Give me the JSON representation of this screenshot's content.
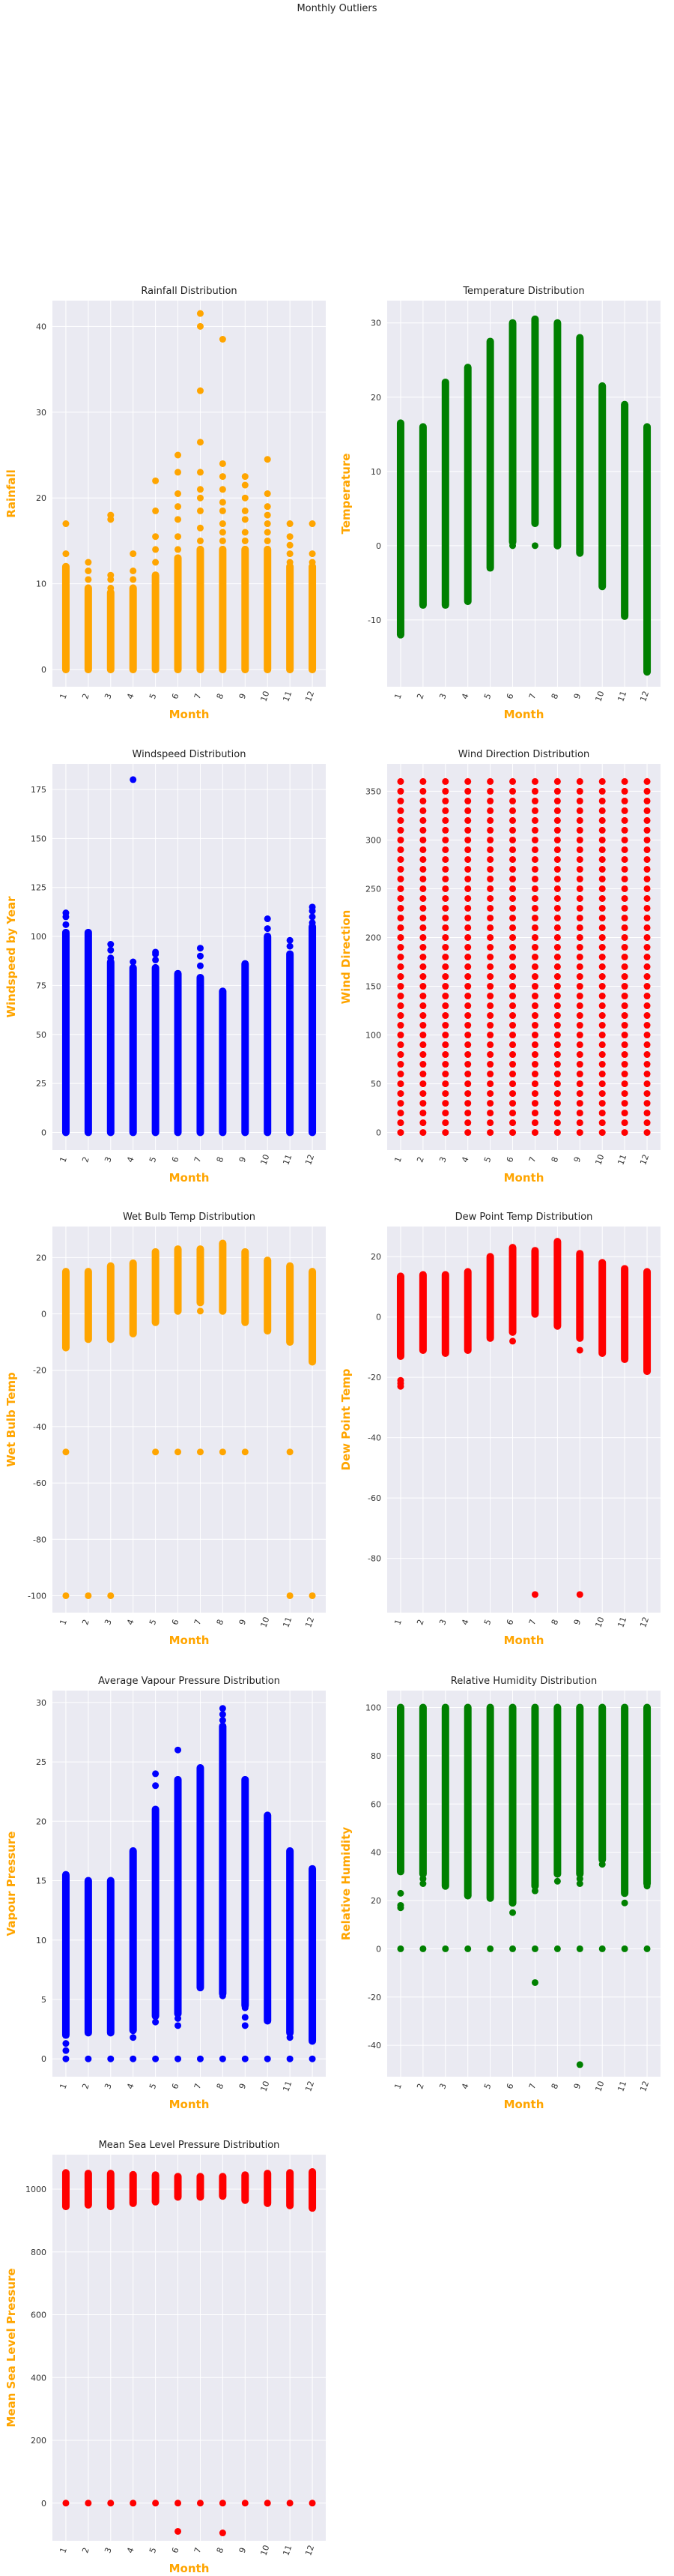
{
  "suptitle": "Monthly Outliers",
  "colors": {
    "accent_label": "#ffa500",
    "plot_bg": "#eaeaf2",
    "grid": "#ffffff"
  },
  "chart_data": [
    {
      "type": "scatter",
      "title": "Rainfall Distribution",
      "xlabel": "Month",
      "ylabel": "Rainfall",
      "color": "#ffa500",
      "x_ticks": [
        "1",
        "2",
        "3",
        "4",
        "5",
        "6",
        "7",
        "8",
        "9",
        "10",
        "11",
        "12"
      ],
      "y_ticks": [
        0,
        10,
        20,
        30,
        40
      ],
      "ylim": [
        -2,
        43
      ],
      "ranges": [
        [
          0,
          12
        ],
        [
          0,
          9.5
        ],
        [
          0,
          9
        ],
        [
          0,
          9.5
        ],
        [
          0,
          11
        ],
        [
          0,
          13
        ],
        [
          0,
          14
        ],
        [
          0,
          14
        ],
        [
          0,
          14
        ],
        [
          0,
          14
        ],
        [
          0,
          12
        ],
        [
          0,
          12
        ]
      ],
      "outliers": [
        [
          1,
          13.5
        ],
        [
          1,
          17
        ],
        [
          2,
          10.5
        ],
        [
          2,
          11.5
        ],
        [
          2,
          12.5
        ],
        [
          3,
          9.5
        ],
        [
          3,
          10.5
        ],
        [
          3,
          11
        ],
        [
          3,
          17.5
        ],
        [
          3,
          18
        ],
        [
          4,
          10.5
        ],
        [
          4,
          11.5
        ],
        [
          4,
          13.5
        ],
        [
          5,
          12.5
        ],
        [
          5,
          14
        ],
        [
          5,
          15.5
        ],
        [
          5,
          18.5
        ],
        [
          5,
          22
        ],
        [
          6,
          14
        ],
        [
          6,
          15.5
        ],
        [
          6,
          17.5
        ],
        [
          6,
          19
        ],
        [
          6,
          20.5
        ],
        [
          6,
          23
        ],
        [
          6,
          25
        ],
        [
          7,
          15
        ],
        [
          7,
          16.5
        ],
        [
          7,
          18.5
        ],
        [
          7,
          20
        ],
        [
          7,
          21
        ],
        [
          7,
          23
        ],
        [
          7,
          26.5
        ],
        [
          7,
          32.5
        ],
        [
          7,
          40
        ],
        [
          7,
          41.5
        ],
        [
          8,
          15
        ],
        [
          8,
          16
        ],
        [
          8,
          17
        ],
        [
          8,
          18.5
        ],
        [
          8,
          19.5
        ],
        [
          8,
          21
        ],
        [
          8,
          22.5
        ],
        [
          8,
          24
        ],
        [
          8,
          38.5
        ],
        [
          9,
          15
        ],
        [
          9,
          16
        ],
        [
          9,
          17.5
        ],
        [
          9,
          18.5
        ],
        [
          9,
          20
        ],
        [
          9,
          21.5
        ],
        [
          9,
          22.5
        ],
        [
          10,
          15
        ],
        [
          10,
          16
        ],
        [
          10,
          17
        ],
        [
          10,
          18
        ],
        [
          10,
          19
        ],
        [
          10,
          20.5
        ],
        [
          10,
          24.5
        ],
        [
          11,
          12.5
        ],
        [
          11,
          13.5
        ],
        [
          11,
          14.5
        ],
        [
          11,
          15.5
        ],
        [
          11,
          17
        ],
        [
          12,
          12.5
        ],
        [
          12,
          13.5
        ],
        [
          12,
          17
        ]
      ]
    },
    {
      "type": "scatter",
      "title": "Temperature Distribution",
      "xlabel": "Month",
      "ylabel": "Temperature",
      "color": "#008000",
      "x_ticks": [
        "1",
        "2",
        "3",
        "4",
        "5",
        "6",
        "7",
        "8",
        "9",
        "10",
        "11",
        "12"
      ],
      "y_ticks": [
        -10,
        0,
        10,
        20,
        30
      ],
      "ylim": [
        -19,
        33
      ],
      "ranges": [
        [
          -12,
          16.5
        ],
        [
          -8,
          16
        ],
        [
          -8,
          22
        ],
        [
          -7.5,
          24
        ],
        [
          -3,
          27.5
        ],
        [
          0.5,
          30
        ],
        [
          3,
          30.5
        ],
        [
          0,
          30
        ],
        [
          -1,
          28
        ],
        [
          -5.5,
          21.5
        ],
        [
          -9.5,
          19
        ],
        [
          -17,
          16
        ]
      ],
      "outliers": [
        [
          3,
          21
        ],
        [
          4,
          23
        ],
        [
          5,
          -2
        ],
        [
          6,
          0
        ],
        [
          6,
          0.5
        ],
        [
          7,
          0
        ],
        [
          9,
          27
        ],
        [
          9,
          27.5
        ]
      ]
    },
    {
      "type": "scatter",
      "title": "Windspeed Distribution",
      "xlabel": "Month",
      "ylabel": "Windspeed by Year",
      "color": "#0000ff",
      "x_ticks": [
        "1",
        "2",
        "3",
        "4",
        "5",
        "6",
        "7",
        "8",
        "9",
        "10",
        "11",
        "12"
      ],
      "y_ticks": [
        0,
        25,
        50,
        75,
        100,
        125,
        150,
        175
      ],
      "ylim": [
        -9,
        188
      ],
      "ranges": [
        [
          0,
          102
        ],
        [
          0,
          102
        ],
        [
          0,
          87
        ],
        [
          0,
          84
        ],
        [
          0,
          84
        ],
        [
          0,
          81
        ],
        [
          0,
          79
        ],
        [
          0,
          72
        ],
        [
          0,
          86
        ],
        [
          0,
          100
        ],
        [
          0,
          91
        ],
        [
          0,
          105
        ]
      ],
      "outliers": [
        [
          1,
          106
        ],
        [
          1,
          110
        ],
        [
          1,
          112
        ],
        [
          3,
          89
        ],
        [
          3,
          93
        ],
        [
          3,
          96
        ],
        [
          4,
          87
        ],
        [
          4,
          180
        ],
        [
          5,
          88
        ],
        [
          5,
          91
        ],
        [
          5,
          92
        ],
        [
          7,
          85
        ],
        [
          7,
          90
        ],
        [
          7,
          94
        ],
        [
          10,
          104
        ],
        [
          10,
          109
        ],
        [
          11,
          95
        ],
        [
          11,
          98
        ],
        [
          12,
          107
        ],
        [
          12,
          110
        ],
        [
          12,
          113
        ],
        [
          12,
          115
        ]
      ]
    },
    {
      "type": "scatter",
      "title": "Wind Direction Distribution",
      "xlabel": "Month",
      "ylabel": "Wind Direction",
      "color": "#ff0000",
      "x_ticks": [
        "1",
        "2",
        "3",
        "4",
        "5",
        "6",
        "7",
        "8",
        "9",
        "10",
        "11",
        "12"
      ],
      "y_ticks": [
        0,
        50,
        100,
        150,
        200,
        250,
        300,
        350
      ],
      "ylim": [
        -18,
        378
      ],
      "grid_step": 10,
      "grid_max": 360
    },
    {
      "type": "scatter",
      "title": "Wet Bulb Temp Distribution",
      "xlabel": "Month",
      "ylabel": "Wet Bulb Temp",
      "color": "#ffa500",
      "x_ticks": [
        "1",
        "2",
        "3",
        "4",
        "5",
        "6",
        "7",
        "8",
        "9",
        "10",
        "11",
        "12"
      ],
      "y_ticks": [
        -100,
        -80,
        -60,
        -40,
        -20,
        0,
        20
      ],
      "ylim": [
        -106,
        31
      ],
      "ranges": [
        [
          -12,
          15
        ],
        [
          -9,
          15
        ],
        [
          -9,
          17
        ],
        [
          -7,
          18
        ],
        [
          -3,
          22
        ],
        [
          1,
          23
        ],
        [
          4,
          23
        ],
        [
          1,
          25
        ],
        [
          -3,
          22
        ],
        [
          -6,
          19
        ],
        [
          -10,
          17
        ],
        [
          -17,
          15
        ]
      ],
      "outliers": [
        [
          1,
          -49
        ],
        [
          1,
          -100
        ],
        [
          2,
          -100
        ],
        [
          3,
          -100
        ],
        [
          5,
          -49
        ],
        [
          6,
          -49
        ],
        [
          7,
          -49
        ],
        [
          7,
          1
        ],
        [
          8,
          -49
        ],
        [
          9,
          -49
        ],
        [
          11,
          -49
        ],
        [
          11,
          -100
        ],
        [
          12,
          -100
        ]
      ]
    },
    {
      "type": "scatter",
      "title": "Dew Point Temp Distribution",
      "xlabel": "Month",
      "ylabel": "Dew Point Temp",
      "color": "#ff0000",
      "x_ticks": [
        "1",
        "2",
        "3",
        "4",
        "5",
        "6",
        "7",
        "8",
        "9",
        "10",
        "11",
        "12"
      ],
      "y_ticks": [
        -80,
        -60,
        -40,
        -20,
        0,
        20
      ],
      "ylim": [
        -98,
        30
      ],
      "ranges": [
        [
          -13,
          13.5
        ],
        [
          -11,
          14
        ],
        [
          -12,
          14
        ],
        [
          -11,
          15
        ],
        [
          -7,
          20
        ],
        [
          -5,
          23
        ],
        [
          1,
          22
        ],
        [
          -3,
          25
        ],
        [
          -7,
          21
        ],
        [
          -12,
          18
        ],
        [
          -14,
          16
        ],
        [
          -18,
          15
        ]
      ],
      "outliers": [
        [
          1,
          -21
        ],
        [
          1,
          -22
        ],
        [
          1,
          -23
        ],
        [
          6,
          -8
        ],
        [
          7,
          -92
        ],
        [
          9,
          -11
        ],
        [
          9,
          -92
        ]
      ]
    },
    {
      "type": "scatter",
      "title": "Average Vapour Pressure Distribution",
      "xlabel": "Month",
      "ylabel": "Vapour Pressure",
      "color": "#0000ff",
      "x_ticks": [
        "1",
        "2",
        "3",
        "4",
        "5",
        "6",
        "7",
        "8",
        "9",
        "10",
        "11",
        "12"
      ],
      "y_ticks": [
        0,
        5,
        10,
        15,
        20,
        25,
        30
      ],
      "ylim": [
        -1.5,
        31
      ],
      "ranges": [
        [
          2,
          15.5
        ],
        [
          2.2,
          15
        ],
        [
          2.2,
          15
        ],
        [
          2.4,
          17.5
        ],
        [
          3.6,
          21
        ],
        [
          3.8,
          23.5
        ],
        [
          6,
          24.5
        ],
        [
          5.5,
          28
        ],
        [
          4.5,
          23.5
        ],
        [
          3.2,
          20.5
        ],
        [
          2.2,
          17.5
        ],
        [
          1.5,
          16
        ]
      ],
      "outliers": [
        [
          1,
          0
        ],
        [
          1,
          0.7
        ],
        [
          1,
          1.3
        ],
        [
          2,
          0
        ],
        [
          3,
          0
        ],
        [
          4,
          0
        ],
        [
          4,
          1.8
        ],
        [
          5,
          0
        ],
        [
          5,
          3.1
        ],
        [
          5,
          23
        ],
        [
          5,
          24
        ],
        [
          6,
          0
        ],
        [
          6,
          2.8
        ],
        [
          6,
          3.4
        ],
        [
          6,
          26
        ],
        [
          7,
          0
        ],
        [
          8,
          0
        ],
        [
          8,
          5.3
        ],
        [
          8,
          28.5
        ],
        [
          8,
          29
        ],
        [
          8,
          29.5
        ],
        [
          9,
          0
        ],
        [
          9,
          2.8
        ],
        [
          9,
          3.5
        ],
        [
          9,
          4.3
        ],
        [
          10,
          0
        ],
        [
          11,
          0
        ],
        [
          11,
          1.8
        ],
        [
          12,
          0
        ]
      ]
    },
    {
      "type": "scatter",
      "title": "Relative Humidity Distribution",
      "xlabel": "Month",
      "ylabel": "Relative Humidity",
      "color": "#008000",
      "x_ticks": [
        "1",
        "2",
        "3",
        "4",
        "5",
        "6",
        "7",
        "8",
        "9",
        "10",
        "11",
        "12"
      ],
      "y_ticks": [
        -40,
        -20,
        0,
        20,
        40,
        60,
        80,
        100
      ],
      "ylim": [
        -53,
        107
      ],
      "ranges": [
        [
          32,
          100
        ],
        [
          31,
          100
        ],
        [
          26,
          100
        ],
        [
          22,
          100
        ],
        [
          21,
          100
        ],
        [
          19,
          100
        ],
        [
          26,
          100
        ],
        [
          31,
          100
        ],
        [
          31,
          100
        ],
        [
          37,
          100
        ],
        [
          23,
          100
        ],
        [
          27,
          100
        ]
      ],
      "outliers": [
        [
          1,
          0
        ],
        [
          1,
          17
        ],
        [
          1,
          18
        ],
        [
          1,
          23
        ],
        [
          2,
          0
        ],
        [
          2,
          27
        ],
        [
          2,
          29
        ],
        [
          3,
          0
        ],
        [
          4,
          0
        ],
        [
          5,
          0
        ],
        [
          6,
          0
        ],
        [
          6,
          15
        ],
        [
          7,
          0
        ],
        [
          7,
          -14
        ],
        [
          7,
          24
        ],
        [
          8,
          0
        ],
        [
          8,
          28
        ],
        [
          9,
          0
        ],
        [
          9,
          -48
        ],
        [
          9,
          27
        ],
        [
          9,
          29
        ],
        [
          10,
          0
        ],
        [
          10,
          35
        ],
        [
          11,
          0
        ],
        [
          11,
          19
        ],
        [
          12,
          0
        ],
        [
          12,
          26
        ]
      ]
    },
    {
      "type": "scatter",
      "title": "Mean Sea Level Pressure Distribution",
      "xlabel": "Month",
      "ylabel": "Mean Sea Level Pressure",
      "color": "#ff0000",
      "x_ticks": [
        "1",
        "2",
        "3",
        "4",
        "5",
        "6",
        "7",
        "8",
        "9",
        "10",
        "11",
        "12"
      ],
      "y_ticks": [
        0,
        200,
        400,
        600,
        800,
        1000
      ],
      "ylim": [
        -120,
        1110
      ],
      "ranges": [
        [
          945,
          1052
        ],
        [
          950,
          1050
        ],
        [
          945,
          1050
        ],
        [
          955,
          1046
        ],
        [
          960,
          1045
        ],
        [
          975,
          1040
        ],
        [
          975,
          1040
        ],
        [
          978,
          1040
        ],
        [
          965,
          1045
        ],
        [
          955,
          1050
        ],
        [
          948,
          1052
        ],
        [
          940,
          1055
        ]
      ],
      "outliers": [
        [
          1,
          0
        ],
        [
          2,
          0
        ],
        [
          3,
          0
        ],
        [
          4,
          0
        ],
        [
          5,
          0
        ],
        [
          6,
          0
        ],
        [
          6,
          -90
        ],
        [
          7,
          0
        ],
        [
          8,
          0
        ],
        [
          8,
          -95
        ],
        [
          9,
          0
        ],
        [
          10,
          0
        ],
        [
          11,
          0
        ],
        [
          12,
          0
        ]
      ]
    }
  ]
}
